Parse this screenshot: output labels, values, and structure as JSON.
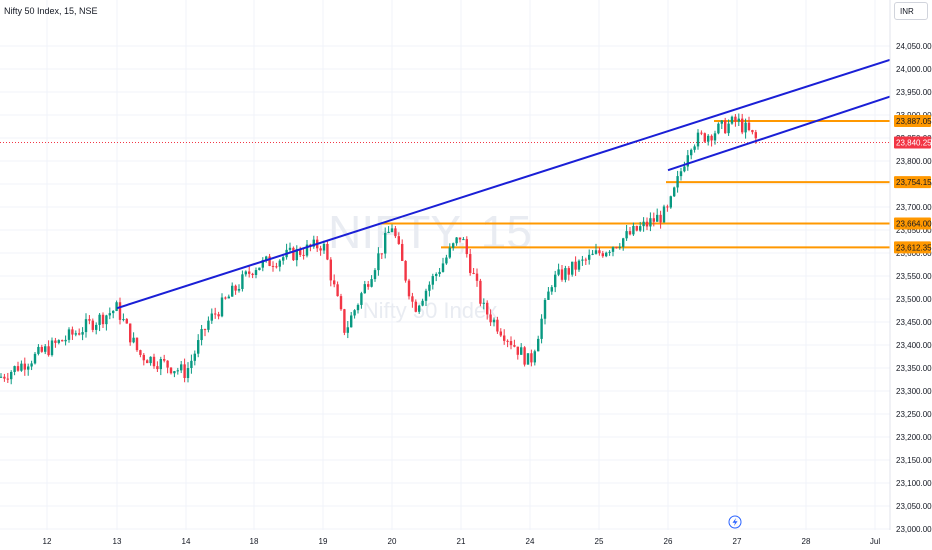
{
  "header": {
    "symbol": "Nifty 50 Index, 15, NSE",
    "currency_button": "INR"
  },
  "watermark": {
    "ticker": "NIFTY, 15",
    "name": "Nifty 50 Index"
  },
  "colors": {
    "up": "#089981",
    "down": "#f23645",
    "trendline": "#1a1fd6",
    "level": "#ff9800",
    "last_price": "#f23645",
    "grid": "#f0f3fa"
  },
  "icons": [
    "lightning-icon"
  ],
  "chart_data": {
    "type": "candlestick",
    "title": "Nifty 50 Index, 15, NSE",
    "ylim": [
      23000,
      24100
    ],
    "y_ticks": [
      "23,000.00",
      "23,050.00",
      "23,100.00",
      "23,150.00",
      "23,200.00",
      "23,250.00",
      "23,300.00",
      "23,350.00",
      "23,400.00",
      "23,450.00",
      "23,500.00",
      "23,550.00",
      "23,600.00",
      "23,650.00",
      "23,700.00",
      "23,750.00",
      "23,800.00",
      "23,850.00",
      "23,900.00",
      "23,950.00",
      "24,000.00",
      "24,050.00"
    ],
    "x_ticks": [
      "12",
      "13",
      "14",
      "18",
      "19",
      "20",
      "21",
      "24",
      "25",
      "26",
      "27",
      "28",
      "Jul"
    ],
    "price_labels": [
      {
        "text": "23,887.05",
        "value": 23887.05,
        "kind": "level"
      },
      {
        "text": "23,840.25",
        "value": 23840.25,
        "kind": "last"
      },
      {
        "text": "23,754.15",
        "value": 23754.15,
        "kind": "level"
      },
      {
        "text": "23,664.00",
        "value": 23664.0,
        "kind": "level"
      },
      {
        "text": "23,612.35",
        "value": 23612.35,
        "kind": "level"
      }
    ],
    "horizontal_levels": [
      23887.05,
      23754.15,
      23664.0,
      23612.35
    ],
    "last_price": 23840.25,
    "trendlines": [
      {
        "name": "upper channel",
        "from": {
          "x": "13",
          "y": 23480
        },
        "to": {
          "x": "Jul",
          "y": 24020
        }
      },
      {
        "name": "lower channel",
        "from": {
          "x": "26",
          "y": 23780
        },
        "to": {
          "x": "Jul",
          "y": 23940
        }
      }
    ],
    "price_path_anchors": [
      {
        "x": "12",
        "y": 23330
      },
      {
        "x": "13",
        "y": 23480
      },
      {
        "x": "13",
        "y": 23380
      },
      {
        "x": "14",
        "y": 23340
      },
      {
        "x": "14",
        "y": 23450
      },
      {
        "x": "18",
        "y": 23570
      },
      {
        "x": "19",
        "y": 23620
      },
      {
        "x": "19",
        "y": 23430
      },
      {
        "x": "20",
        "y": 23660
      },
      {
        "x": "20",
        "y": 23480
      },
      {
        "x": "21",
        "y": 23640
      },
      {
        "x": "21",
        "y": 23480
      },
      {
        "x": "24",
        "y": 23360
      },
      {
        "x": "24",
        "y": 23540
      },
      {
        "x": "25",
        "y": 23600
      },
      {
        "x": "26",
        "y": 23690
      },
      {
        "x": "26",
        "y": 23840
      },
      {
        "x": "27",
        "y": 23887
      },
      {
        "x": "27",
        "y": 23840
      }
    ]
  }
}
